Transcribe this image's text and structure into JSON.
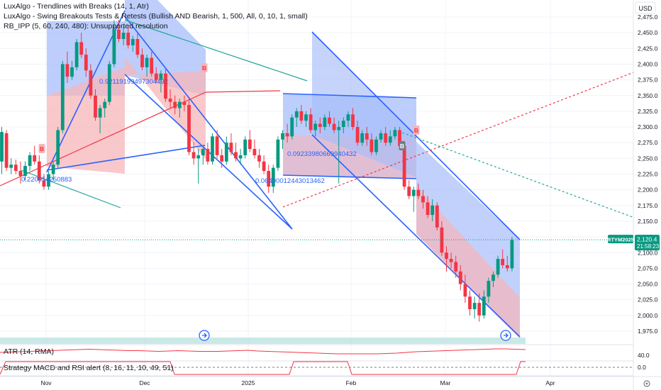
{
  "indicators": {
    "line1": "LuxAlgo - Trendlines with Breaks (14, 1, Atr)",
    "line2": "LuxAlgo - Swing Breakouts Tests & Retests (Bullish AND Bearish, 1, 500, All, 0, 10, 1, small)",
    "line3": "RB_IPP (5, 60, 240, 480): Unsupported resolution"
  },
  "currency_label": "USD",
  "price_tag": {
    "symbol": "RTYM2025",
    "price": "2,120.4",
    "countdown": "21:58:23"
  },
  "atr_pane": {
    "label": "ATR (14, RMA)",
    "axis_value": "40.0"
  },
  "strategy_pane": {
    "label": "Strategy MACD and RSI alert (8, 16, 11, 10, 49, 51)",
    "axis_value": "0.0"
  },
  "channel_labels": [
    "0.92119199497304492",
    "0.220054250883",
    "0.06400012443013462",
    "0.09233980669940432"
  ],
  "signal_labels": [
    "B",
    "B",
    "B",
    "B"
  ],
  "colors": {
    "bull": "#089981",
    "bear": "#f23645",
    "channel_blue": "#2962ff",
    "fill_blue": "#a7bdfb",
    "fill_red": "#f7b5ba",
    "teal_line": "#26a69a",
    "red_trend": "#f23645",
    "atr": "#f23645"
  },
  "chart_data": {
    "type": "candlestick",
    "symbol": "RTYM2025",
    "x_labels": [
      "Nov",
      "Dec",
      "2025",
      "Feb",
      "Mar",
      "Apr"
    ],
    "y_ticks": [
      2475,
      2450,
      2425,
      2400,
      2375,
      2350,
      2325,
      2300,
      2275,
      2250,
      2225,
      2200,
      2175,
      2150,
      2125,
      2100,
      2075,
      2050,
      2025,
      2000,
      1975
    ],
    "ylim": [
      1965,
      2505
    ],
    "last_price": 2120.4,
    "candles": [
      {
        "o": 2245,
        "h": 2300,
        "l": 2225,
        "c": 2292
      },
      {
        "o": 2290,
        "h": 2295,
        "l": 2230,
        "c": 2235
      },
      {
        "o": 2235,
        "h": 2250,
        "l": 2225,
        "c": 2240
      },
      {
        "o": 2240,
        "h": 2248,
        "l": 2225,
        "c": 2230
      },
      {
        "o": 2230,
        "h": 2245,
        "l": 2210,
        "c": 2222
      },
      {
        "o": 2222,
        "h": 2245,
        "l": 2215,
        "c": 2238
      },
      {
        "o": 2238,
        "h": 2260,
        "l": 2230,
        "c": 2255
      },
      {
        "o": 2255,
        "h": 2270,
        "l": 2240,
        "c": 2245
      },
      {
        "o": 2245,
        "h": 2255,
        "l": 2210,
        "c": 2215
      },
      {
        "o": 2215,
        "h": 2225,
        "l": 2200,
        "c": 2205
      },
      {
        "o": 2205,
        "h": 2230,
        "l": 2200,
        "c": 2225
      },
      {
        "o": 2225,
        "h": 2245,
        "l": 2215,
        "c": 2240
      },
      {
        "o": 2240,
        "h": 2300,
        "l": 2235,
        "c": 2295
      },
      {
        "o": 2295,
        "h": 2405,
        "l": 2290,
        "c": 2400
      },
      {
        "o": 2400,
        "h": 2420,
        "l": 2370,
        "c": 2380
      },
      {
        "o": 2380,
        "h": 2405,
        "l": 2375,
        "c": 2395
      },
      {
        "o": 2395,
        "h": 2440,
        "l": 2390,
        "c": 2435
      },
      {
        "o": 2435,
        "h": 2450,
        "l": 2410,
        "c": 2415
      },
      {
        "o": 2415,
        "h": 2425,
        "l": 2380,
        "c": 2390
      },
      {
        "o": 2390,
        "h": 2400,
        "l": 2345,
        "c": 2350
      },
      {
        "o": 2350,
        "h": 2360,
        "l": 2310,
        "c": 2315
      },
      {
        "o": 2315,
        "h": 2335,
        "l": 2290,
        "c": 2330
      },
      {
        "o": 2330,
        "h": 2345,
        "l": 2315,
        "c": 2340
      },
      {
        "o": 2340,
        "h": 2405,
        "l": 2335,
        "c": 2400
      },
      {
        "o": 2400,
        "h": 2470,
        "l": 2395,
        "c": 2455
      },
      {
        "o": 2455,
        "h": 2470,
        "l": 2435,
        "c": 2440
      },
      {
        "o": 2440,
        "h": 2460,
        "l": 2430,
        "c": 2450
      },
      {
        "o": 2450,
        "h": 2460,
        "l": 2425,
        "c": 2430
      },
      {
        "o": 2430,
        "h": 2445,
        "l": 2420,
        "c": 2440
      },
      {
        "o": 2440,
        "h": 2450,
        "l": 2410,
        "c": 2415
      },
      {
        "o": 2415,
        "h": 2425,
        "l": 2390,
        "c": 2395
      },
      {
        "o": 2395,
        "h": 2415,
        "l": 2380,
        "c": 2410
      },
      {
        "o": 2410,
        "h": 2420,
        "l": 2380,
        "c": 2385
      },
      {
        "o": 2385,
        "h": 2395,
        "l": 2370,
        "c": 2375
      },
      {
        "o": 2375,
        "h": 2390,
        "l": 2355,
        "c": 2385
      },
      {
        "o": 2385,
        "h": 2395,
        "l": 2340,
        "c": 2345
      },
      {
        "o": 2345,
        "h": 2360,
        "l": 2330,
        "c": 2340
      },
      {
        "o": 2340,
        "h": 2350,
        "l": 2320,
        "c": 2330
      },
      {
        "o": 2330,
        "h": 2345,
        "l": 2315,
        "c": 2340
      },
      {
        "o": 2340,
        "h": 2350,
        "l": 2325,
        "c": 2335
      },
      {
        "o": 2335,
        "h": 2345,
        "l": 2255,
        "c": 2260
      },
      {
        "o": 2260,
        "h": 2275,
        "l": 2240,
        "c": 2250
      },
      {
        "o": 2250,
        "h": 2265,
        "l": 2210,
        "c": 2255
      },
      {
        "o": 2255,
        "h": 2270,
        "l": 2240,
        "c": 2265
      },
      {
        "o": 2265,
        "h": 2275,
        "l": 2240,
        "c": 2245
      },
      {
        "o": 2245,
        "h": 2290,
        "l": 2240,
        "c": 2285
      },
      {
        "o": 2285,
        "h": 2295,
        "l": 2250,
        "c": 2255
      },
      {
        "o": 2255,
        "h": 2265,
        "l": 2235,
        "c": 2245
      },
      {
        "o": 2245,
        "h": 2285,
        "l": 2240,
        "c": 2275
      },
      {
        "o": 2275,
        "h": 2290,
        "l": 2255,
        "c": 2260
      },
      {
        "o": 2260,
        "h": 2275,
        "l": 2245,
        "c": 2250
      },
      {
        "o": 2250,
        "h": 2265,
        "l": 2240,
        "c": 2255
      },
      {
        "o": 2255,
        "h": 2285,
        "l": 2250,
        "c": 2280
      },
      {
        "o": 2280,
        "h": 2295,
        "l": 2260,
        "c": 2265
      },
      {
        "o": 2265,
        "h": 2280,
        "l": 2250,
        "c": 2255
      },
      {
        "o": 2255,
        "h": 2265,
        "l": 2235,
        "c": 2245
      },
      {
        "o": 2245,
        "h": 2255,
        "l": 2225,
        "c": 2230
      },
      {
        "o": 2230,
        "h": 2240,
        "l": 2195,
        "c": 2205
      },
      {
        "o": 2205,
        "h": 2240,
        "l": 2195,
        "c": 2235
      },
      {
        "o": 2235,
        "h": 2285,
        "l": 2230,
        "c": 2280
      },
      {
        "o": 2280,
        "h": 2295,
        "l": 2265,
        "c": 2290
      },
      {
        "o": 2290,
        "h": 2305,
        "l": 2275,
        "c": 2285
      },
      {
        "o": 2285,
        "h": 2320,
        "l": 2280,
        "c": 2315
      },
      {
        "o": 2315,
        "h": 2330,
        "l": 2300,
        "c": 2325
      },
      {
        "o": 2325,
        "h": 2335,
        "l": 2305,
        "c": 2310
      },
      {
        "o": 2310,
        "h": 2325,
        "l": 2300,
        "c": 2320
      },
      {
        "o": 2320,
        "h": 2330,
        "l": 2290,
        "c": 2295
      },
      {
        "o": 2295,
        "h": 2310,
        "l": 2285,
        "c": 2305
      },
      {
        "o": 2305,
        "h": 2315,
        "l": 2290,
        "c": 2300
      },
      {
        "o": 2300,
        "h": 2320,
        "l": 2295,
        "c": 2315
      },
      {
        "o": 2315,
        "h": 2325,
        "l": 2300,
        "c": 2305
      },
      {
        "o": 2305,
        "h": 2315,
        "l": 2290,
        "c": 2295
      },
      {
        "o": 2295,
        "h": 2310,
        "l": 2210,
        "c": 2300
      },
      {
        "o": 2300,
        "h": 2315,
        "l": 2290,
        "c": 2310
      },
      {
        "o": 2310,
        "h": 2325,
        "l": 2300,
        "c": 2320
      },
      {
        "o": 2320,
        "h": 2330,
        "l": 2295,
        "c": 2300
      },
      {
        "o": 2300,
        "h": 2310,
        "l": 2270,
        "c": 2275
      },
      {
        "o": 2275,
        "h": 2295,
        "l": 2270,
        "c": 2290
      },
      {
        "o": 2290,
        "h": 2300,
        "l": 2270,
        "c": 2280
      },
      {
        "o": 2280,
        "h": 2290,
        "l": 2255,
        "c": 2260
      },
      {
        "o": 2260,
        "h": 2285,
        "l": 2255,
        "c": 2280
      },
      {
        "o": 2280,
        "h": 2295,
        "l": 2275,
        "c": 2290
      },
      {
        "o": 2290,
        "h": 2300,
        "l": 2270,
        "c": 2275
      },
      {
        "o": 2275,
        "h": 2295,
        "l": 2270,
        "c": 2285
      },
      {
        "o": 2285,
        "h": 2300,
        "l": 2280,
        "c": 2295
      },
      {
        "o": 2295,
        "h": 2300,
        "l": 2265,
        "c": 2270
      },
      {
        "o": 2270,
        "h": 2275,
        "l": 2200,
        "c": 2205
      },
      {
        "o": 2205,
        "h": 2215,
        "l": 2185,
        "c": 2190
      },
      {
        "o": 2190,
        "h": 2205,
        "l": 2165,
        "c": 2200
      },
      {
        "o": 2200,
        "h": 2210,
        "l": 2185,
        "c": 2190
      },
      {
        "o": 2190,
        "h": 2200,
        "l": 2170,
        "c": 2180
      },
      {
        "o": 2180,
        "h": 2190,
        "l": 2155,
        "c": 2160
      },
      {
        "o": 2160,
        "h": 2185,
        "l": 2150,
        "c": 2175
      },
      {
        "o": 2175,
        "h": 2180,
        "l": 2135,
        "c": 2140
      },
      {
        "o": 2140,
        "h": 2150,
        "l": 2095,
        "c": 2100
      },
      {
        "o": 2100,
        "h": 2110,
        "l": 2070,
        "c": 2090
      },
      {
        "o": 2090,
        "h": 2100,
        "l": 2075,
        "c": 2085
      },
      {
        "o": 2085,
        "h": 2095,
        "l": 2060,
        "c": 2070
      },
      {
        "o": 2070,
        "h": 2080,
        "l": 2040,
        "c": 2050
      },
      {
        "o": 2050,
        "h": 2065,
        "l": 2020,
        "c": 2030
      },
      {
        "o": 2030,
        "h": 2040,
        "l": 2000,
        "c": 2010
      },
      {
        "o": 2010,
        "h": 2030,
        "l": 1995,
        "c": 2020
      },
      {
        "o": 2020,
        "h": 2035,
        "l": 1990,
        "c": 2000
      },
      {
        "o": 2000,
        "h": 2040,
        "l": 1995,
        "c": 2030
      },
      {
        "o": 2030,
        "h": 2060,
        "l": 2020,
        "c": 2055
      },
      {
        "o": 2055,
        "h": 2070,
        "l": 2045,
        "c": 2065
      },
      {
        "o": 2065,
        "h": 2095,
        "l": 2060,
        "c": 2090
      },
      {
        "o": 2090,
        "h": 2105,
        "l": 2075,
        "c": 2080
      },
      {
        "o": 2080,
        "h": 2095,
        "l": 2070,
        "c": 2075
      },
      {
        "o": 2075,
        "h": 2125,
        "l": 2070,
        "c": 2120
      }
    ],
    "atr_range": [
      30,
      70
    ],
    "atr_values": [
      52,
      53,
      54,
      55,
      56,
      57,
      58,
      59,
      60,
      61,
      60,
      59,
      58,
      57,
      57,
      56,
      55,
      56,
      57,
      56,
      55,
      55,
      55,
      56,
      57,
      58,
      56,
      55,
      54,
      53,
      52,
      51,
      50,
      49,
      48,
      48,
      48,
      48,
      48,
      49,
      50,
      52,
      54,
      55,
      56,
      57,
      58,
      59,
      60,
      61,
      62,
      62,
      61,
      60
    ]
  }
}
